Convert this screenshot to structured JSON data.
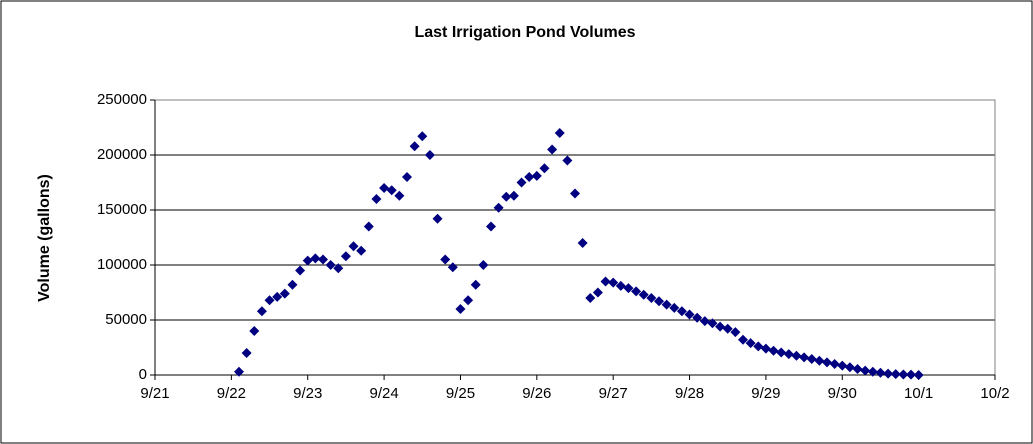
{
  "chart_data": {
    "type": "scatter",
    "title": "Last Irrigation Pond Volumes",
    "y_label": "Volume (gallons)",
    "series": [
      {
        "name": "Volume",
        "color": "#000080",
        "x": [
          22.1,
          22.2,
          22.3,
          22.4,
          22.5,
          22.6,
          22.7,
          22.8,
          22.9,
          23.0,
          23.1,
          23.2,
          23.3,
          23.4,
          23.5,
          23.6,
          23.7,
          23.8,
          23.9,
          24.0,
          24.1,
          24.2,
          24.3,
          24.4,
          24.5,
          24.6,
          24.7,
          24.8,
          24.9,
          25.0,
          25.1,
          25.2,
          25.3,
          25.4,
          25.5,
          25.6,
          25.7,
          25.8,
          25.9,
          26.0,
          26.1,
          26.2,
          26.3,
          26.4,
          26.5,
          26.6,
          26.7,
          26.8,
          26.9,
          27.0,
          27.1,
          27.2,
          27.3,
          27.4,
          27.5,
          27.6,
          27.7,
          27.8,
          27.9,
          28.0,
          28.1,
          28.2,
          28.3,
          28.4,
          28.5,
          28.6,
          28.7,
          28.8,
          28.9,
          29.0,
          29.1,
          29.2,
          29.3,
          29.4,
          29.5,
          29.6,
          29.7,
          29.8,
          29.9,
          30.0,
          30.1,
          30.2,
          30.3,
          30.4,
          30.5,
          30.6,
          30.7,
          30.8,
          30.9,
          31.0
        ],
        "values": [
          3000,
          20000,
          40000,
          58000,
          68000,
          71000,
          74000,
          82000,
          95000,
          104000,
          106000,
          105000,
          100000,
          97000,
          108000,
          117000,
          113000,
          135000,
          160000,
          170000,
          168000,
          163000,
          180000,
          208000,
          217000,
          200000,
          142000,
          105000,
          98000,
          60000,
          68000,
          82000,
          100000,
          135000,
          152000,
          162000,
          163000,
          175000,
          180000,
          181000,
          188000,
          205000,
          220000,
          195000,
          165000,
          120000,
          70000,
          75000,
          85000,
          84000,
          81000,
          79000,
          76000,
          73000,
          70000,
          67000,
          64000,
          61000,
          58000,
          55000,
          52000,
          49000,
          47000,
          44000,
          42000,
          39000,
          32000,
          29000,
          26000,
          24000,
          22000,
          20500,
          19000,
          17500,
          16000,
          14500,
          13000,
          11500,
          10000,
          8500,
          7000,
          5500,
          4000,
          3000,
          2000,
          1200,
          800,
          500,
          300,
          0
        ]
      }
    ],
    "xlim": [
      21,
      32
    ],
    "xticks": [
      {
        "value": 21,
        "label": "9/21"
      },
      {
        "value": 22,
        "label": "9/22"
      },
      {
        "value": 23,
        "label": "9/23"
      },
      {
        "value": 24,
        "label": "9/24"
      },
      {
        "value": 25,
        "label": "9/25"
      },
      {
        "value": 26,
        "label": "9/26"
      },
      {
        "value": 27,
        "label": "9/27"
      },
      {
        "value": 28,
        "label": "9/28"
      },
      {
        "value": 29,
        "label": "9/29"
      },
      {
        "value": 30,
        "label": "9/30"
      },
      {
        "value": 31,
        "label": "10/1"
      },
      {
        "value": 32,
        "label": "10/2"
      }
    ],
    "ylim": [
      0,
      250000
    ],
    "yticks": [
      0,
      50000,
      100000,
      150000,
      200000,
      250000
    ],
    "grid": true
  }
}
